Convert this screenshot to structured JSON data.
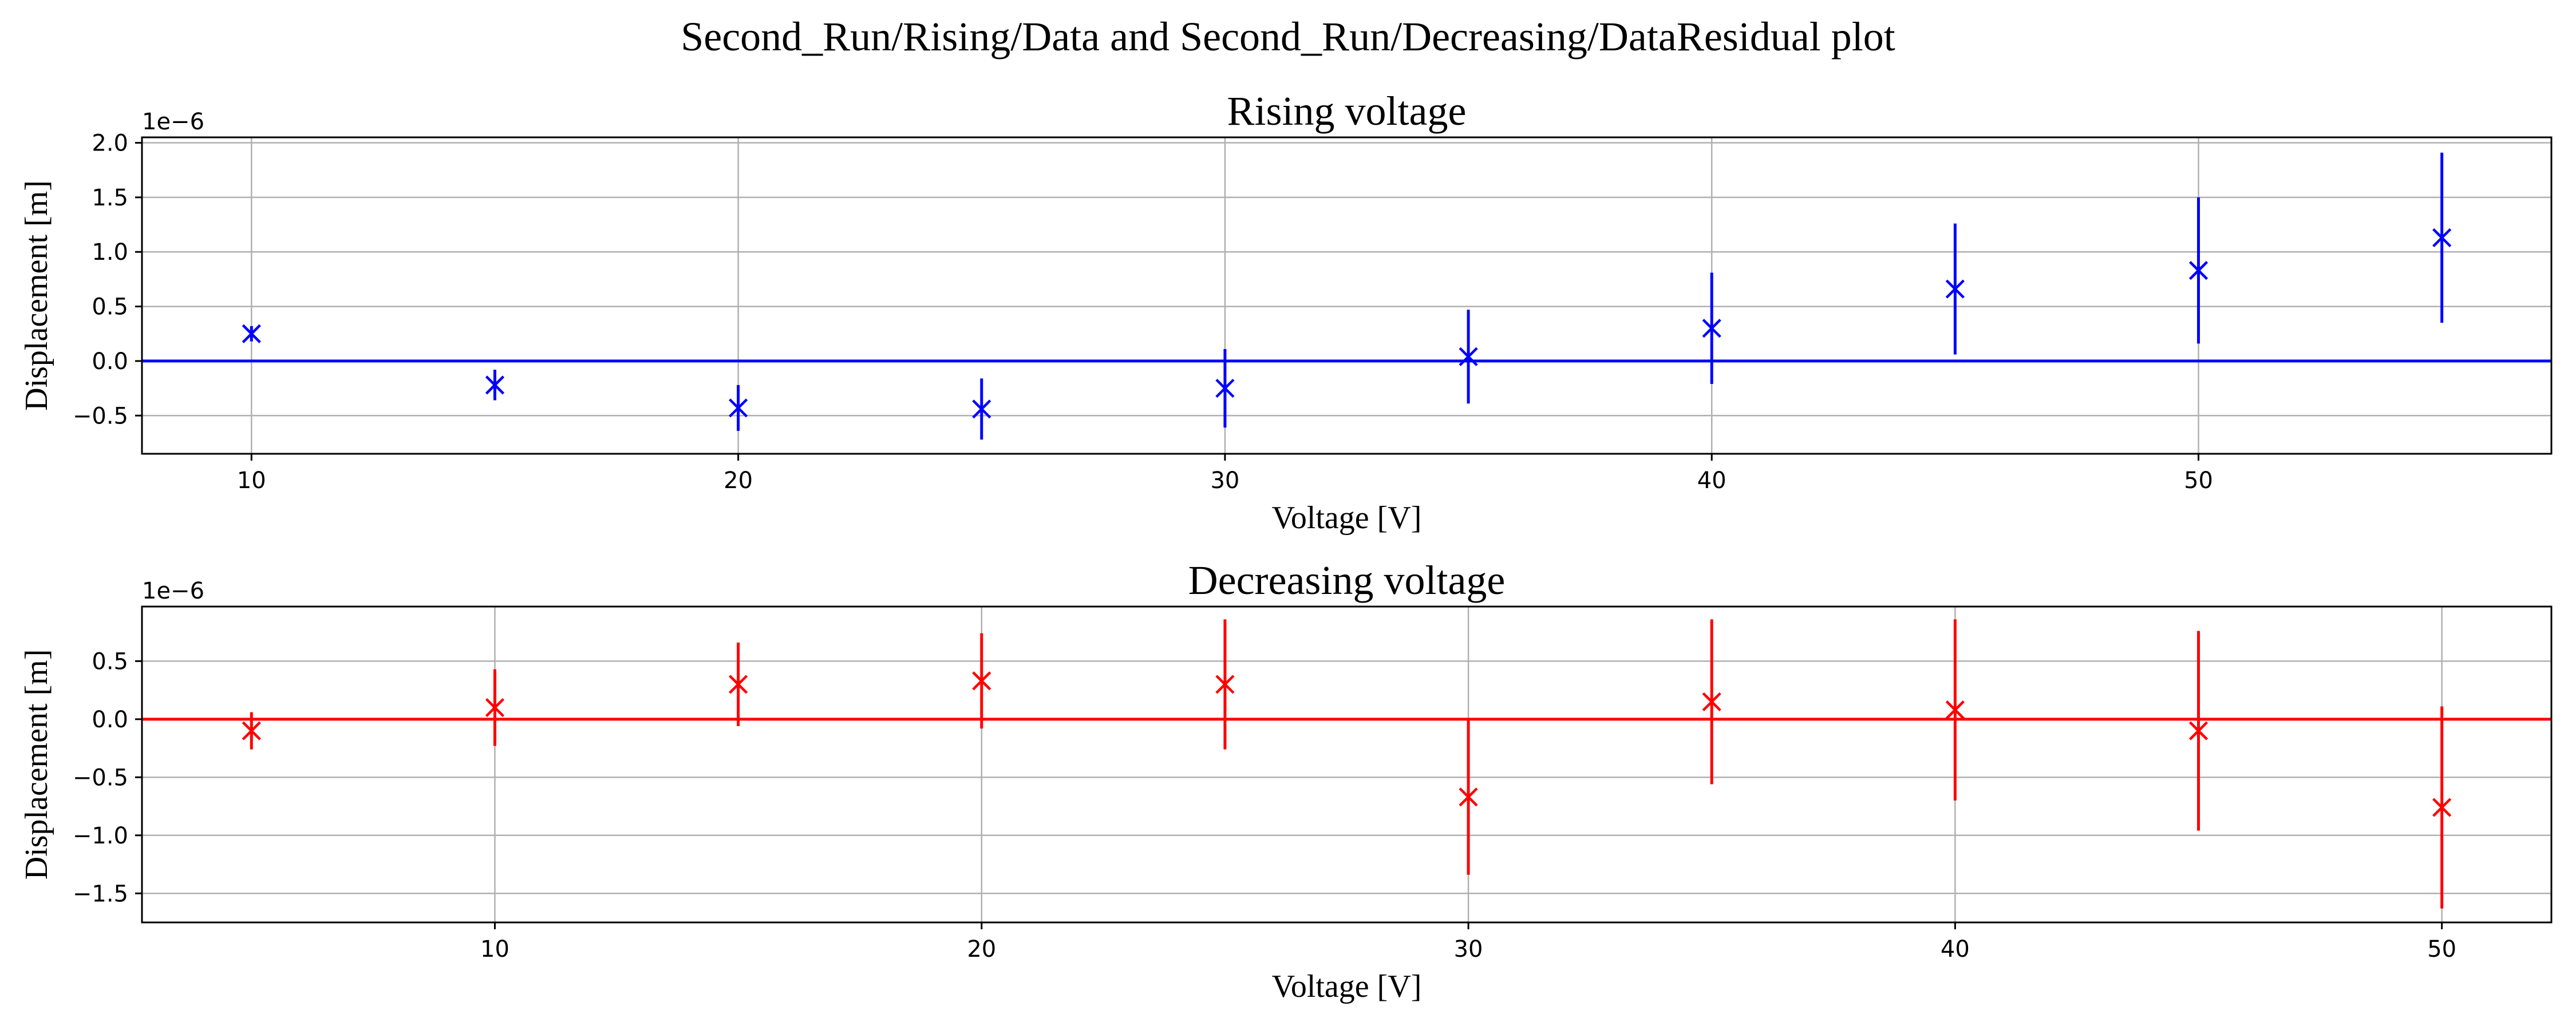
{
  "title": "Second_Run/Rising/Data and Second_Run/Decreasing/DataResidual plot",
  "chart_data": [
    {
      "type": "scatter",
      "title": "Rising voltage",
      "xlabel": "Voltage [V]",
      "ylabel": "Displacement [m]",
      "y_offset_label": "1e−6",
      "color": "#0000ff",
      "xlim": [
        7.75,
        57.25
      ],
      "ylim": [
        -0.85,
        2.05
      ],
      "xticks": [
        10,
        20,
        30,
        40,
        50
      ],
      "xtick_labels": [
        "10",
        "20",
        "30",
        "40",
        "50"
      ],
      "yticks": [
        -0.5,
        0.0,
        0.5,
        1.0,
        1.5,
        2.0
      ],
      "ytick_labels": [
        "−0.5",
        "0.0",
        "0.5",
        "1.0",
        "1.5",
        "2.0"
      ],
      "grid": true,
      "zero_line": true,
      "marker": "x",
      "x": [
        10,
        15,
        20,
        25,
        30,
        35,
        40,
        45,
        50,
        55
      ],
      "y": [
        0.25,
        -0.22,
        -0.43,
        -0.44,
        -0.25,
        0.04,
        0.3,
        0.66,
        0.83,
        1.13
      ],
      "yerr": [
        0.07,
        0.14,
        0.21,
        0.28,
        0.36,
        0.43,
        0.51,
        0.6,
        0.67,
        0.78
      ]
    },
    {
      "type": "scatter",
      "title": "Decreasing voltage",
      "xlabel": "Voltage [V]",
      "ylabel": "Displacement [m]",
      "y_offset_label": "1e−6",
      "color": "#ff0000",
      "xlim": [
        2.75,
        52.25
      ],
      "ylim": [
        -1.75,
        0.97
      ],
      "xticks": [
        10,
        20,
        30,
        40,
        50
      ],
      "xtick_labels": [
        "10",
        "20",
        "30",
        "40",
        "50"
      ],
      "yticks": [
        -1.5,
        -1.0,
        -0.5,
        0.0,
        0.5
      ],
      "ytick_labels": [
        "−1.5",
        "−1.0",
        "−0.5",
        "0.0",
        "0.5"
      ],
      "grid": true,
      "zero_line": true,
      "marker": "x",
      "x": [
        5,
        10,
        15,
        20,
        25,
        30,
        35,
        40,
        45,
        50
      ],
      "y": [
        -0.1,
        0.1,
        0.3,
        0.33,
        0.3,
        -0.67,
        0.15,
        0.08,
        -0.1,
        -0.76
      ],
      "yerr": [
        0.16,
        0.33,
        0.36,
        0.41,
        0.56,
        0.67,
        0.71,
        0.78,
        0.86,
        0.87
      ]
    }
  ]
}
